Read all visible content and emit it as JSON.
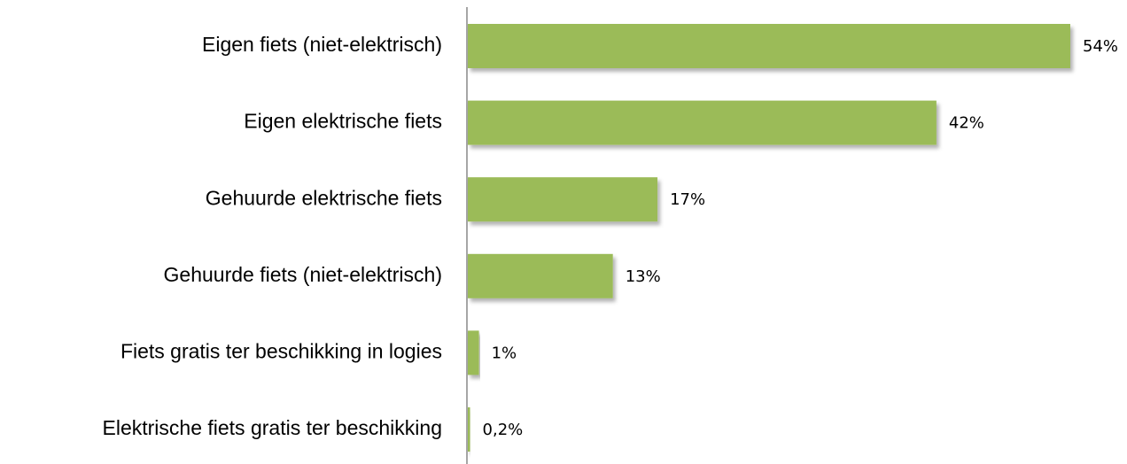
{
  "chart_data": {
    "type": "bar",
    "orientation": "horizontal",
    "categories": [
      "Eigen fiets (niet-elektrisch)",
      "Eigen elektrische fiets",
      "Gehuurde elektrische fiets",
      "Gehuurde fiets (niet-elektrisch)",
      "Fiets gratis ter beschikking in logies",
      "Elektrische fiets gratis ter beschikking"
    ],
    "values": [
      54,
      42,
      17,
      13,
      1,
      0.2
    ],
    "value_labels": [
      "54%",
      "42%",
      "17%",
      "13%",
      "1%",
      "0,2%"
    ],
    "color": "#9bbb59"
  }
}
